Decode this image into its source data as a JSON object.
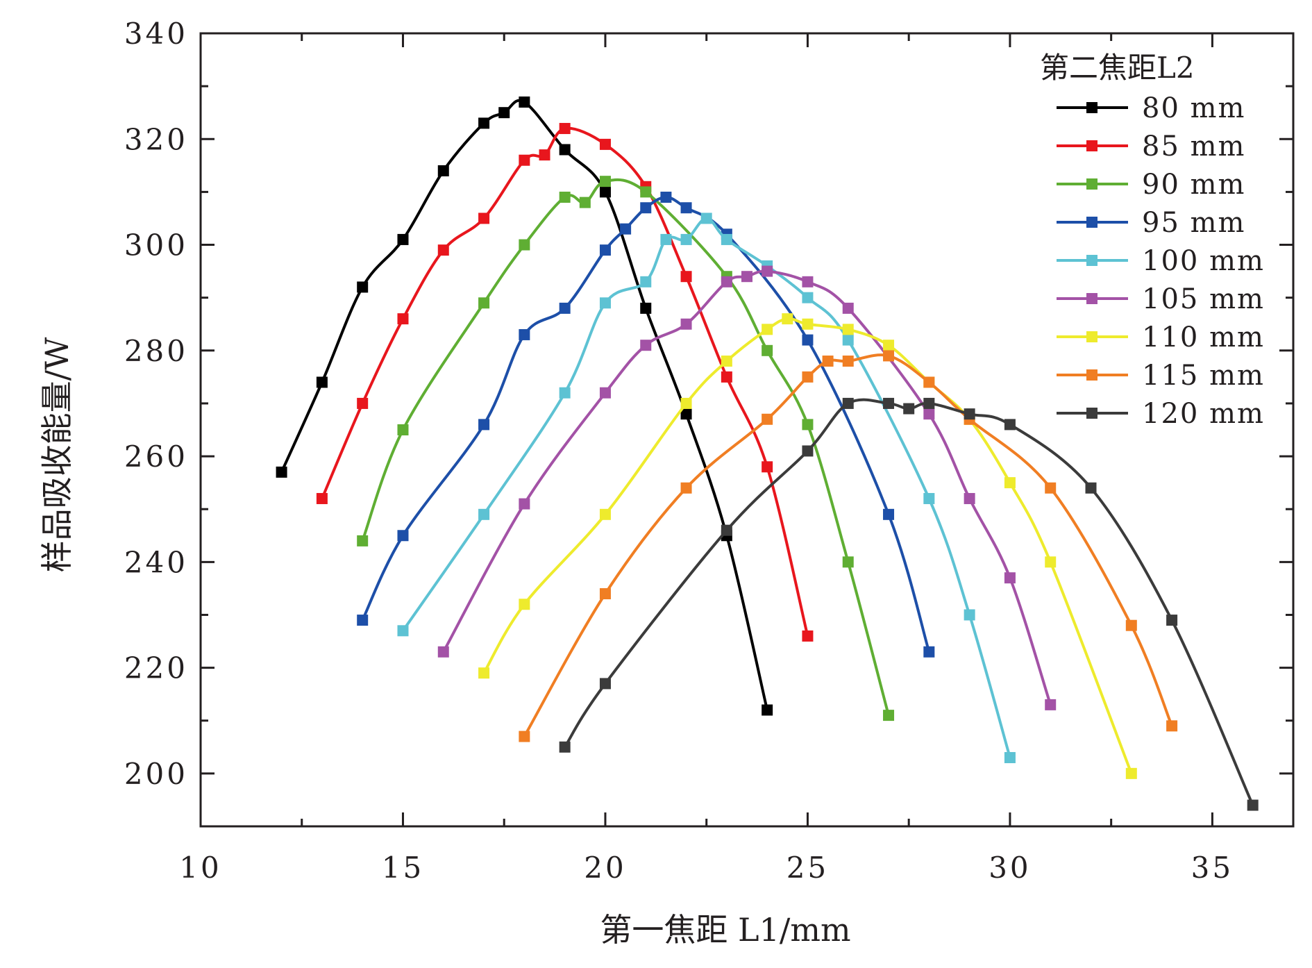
{
  "chart_data": {
    "type": "line",
    "title": "",
    "xlabel": "第一焦距 L1/mm",
    "ylabel": "样品吸收能量/W",
    "xlim": [
      10,
      37
    ],
    "ylim": [
      190,
      340
    ],
    "x_ticks": [
      10,
      15,
      20,
      25,
      30,
      35
    ],
    "y_ticks": [
      200,
      220,
      240,
      260,
      280,
      300,
      320,
      340
    ],
    "legend_title": "第二焦距L2",
    "legend_position": "top-right",
    "series": [
      {
        "name": "80 mm",
        "color": "#000000",
        "x": [
          12,
          13,
          14,
          15,
          16,
          17,
          17.5,
          18,
          19,
          20,
          21,
          22,
          23,
          24
        ],
        "y": [
          257,
          274,
          292,
          301,
          314,
          323,
          325,
          327,
          318,
          310,
          288,
          268,
          245,
          212
        ]
      },
      {
        "name": "85 mm",
        "color": "#e8161d",
        "x": [
          13,
          14,
          15,
          16,
          17,
          18,
          18.5,
          19,
          20,
          21,
          22,
          23,
          24,
          25
        ],
        "y": [
          252,
          270,
          286,
          299,
          305,
          316,
          317,
          322,
          319,
          311,
          294,
          275,
          258,
          226
        ]
      },
      {
        "name": "90 mm",
        "color": "#5fae33",
        "x": [
          14,
          15,
          17,
          18,
          19,
          19.5,
          20,
          21,
          23,
          24,
          25,
          26,
          27
        ],
        "y": [
          244,
          265,
          289,
          300,
          309,
          308,
          312,
          310,
          294,
          280,
          266,
          240,
          211
        ]
      },
      {
        "name": "95 mm",
        "color": "#1d4fa8",
        "x": [
          14,
          15,
          17,
          18,
          19,
          20,
          20.5,
          21,
          21.5,
          22,
          23,
          25,
          27,
          28
        ],
        "y": [
          229,
          245,
          266,
          283,
          288,
          299,
          303,
          307,
          309,
          307,
          302,
          282,
          249,
          223
        ]
      },
      {
        "name": "100 mm",
        "color": "#5dc2d3",
        "x": [
          15,
          17,
          19,
          20,
          21,
          21.5,
          22,
          22.5,
          23,
          24,
          25,
          26,
          28,
          29,
          30
        ],
        "y": [
          227,
          249,
          272,
          289,
          293,
          301,
          301,
          305,
          301,
          296,
          290,
          282,
          252,
          230,
          203
        ]
      },
      {
        "name": "105 mm",
        "color": "#a352a6",
        "x": [
          16,
          18,
          20,
          21,
          22,
          23,
          23.5,
          24,
          25,
          26,
          28,
          29,
          30,
          31
        ],
        "y": [
          223,
          251,
          272,
          281,
          285,
          293,
          294,
          295,
          293,
          288,
          268,
          252,
          237,
          213
        ]
      },
      {
        "name": "110 mm",
        "color": "#eeeb2d",
        "x": [
          17,
          18,
          20,
          22,
          23,
          24,
          24.5,
          25,
          26,
          27,
          28,
          29,
          30,
          31,
          33
        ],
        "y": [
          219,
          232,
          249,
          270,
          278,
          284,
          286,
          285,
          284,
          281,
          274,
          267,
          255,
          240,
          200
        ]
      },
      {
        "name": "115 mm",
        "color": "#f07e23",
        "x": [
          18,
          20,
          22,
          24,
          25,
          25.5,
          26,
          27,
          28,
          29,
          31,
          33,
          34
        ],
        "y": [
          207,
          234,
          254,
          267,
          275,
          278,
          278,
          279,
          274,
          267,
          254,
          228,
          209
        ]
      },
      {
        "name": "120 mm",
        "color": "#3b3b3b",
        "x": [
          19,
          20,
          23,
          25,
          26,
          27,
          27.5,
          28,
          29,
          30,
          32,
          34,
          36
        ],
        "y": [
          205,
          217,
          246,
          261,
          270,
          270,
          269,
          270,
          268,
          266,
          254,
          229,
          194
        ]
      }
    ]
  }
}
